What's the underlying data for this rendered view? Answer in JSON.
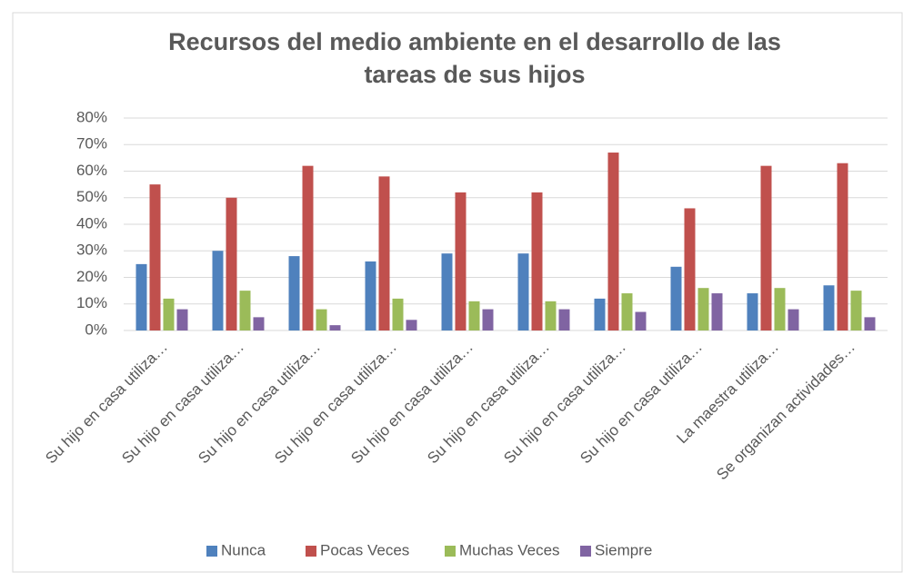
{
  "chart_data": {
    "type": "bar",
    "title": "Recursos del medio ambiente en el desarrollo de las tareas de sus hijos",
    "categories": [
      "Su hijo en casa utiliza…",
      "Su hijo en casa utiliza…",
      "Su hijo en casa utiliza…",
      "Su hijo en casa utiliza…",
      "Su hijo en casa utiliza…",
      "Su hijo en casa utiliza…",
      "Su hijo en casa utiliza…",
      "Su hijo en casa utiliza…",
      "La maestra utiliza…",
      "Se organizan actividades…"
    ],
    "series": [
      {
        "name": "Nunca",
        "color": "#4f81bd",
        "values": [
          25,
          30,
          28,
          26,
          29,
          29,
          12,
          24,
          14,
          17
        ]
      },
      {
        "name": "Pocas Veces",
        "color": "#c0504d",
        "values": [
          55,
          50,
          62,
          58,
          52,
          52,
          67,
          46,
          62,
          63
        ]
      },
      {
        "name": "Muchas Veces",
        "color": "#9bbb59",
        "values": [
          12,
          15,
          8,
          12,
          11,
          11,
          14,
          16,
          16,
          15
        ]
      },
      {
        "name": "Siempre",
        "color": "#8064a2",
        "values": [
          8,
          5,
          2,
          4,
          8,
          8,
          7,
          14,
          8,
          5
        ]
      }
    ],
    "ylim": [
      0,
      80
    ],
    "yticks": [
      {
        "value": 0,
        "label": "0%"
      },
      {
        "value": 10,
        "label": "10%"
      },
      {
        "value": 20,
        "label": "20%"
      },
      {
        "value": 30,
        "label": "30%"
      },
      {
        "value": 40,
        "label": "40%"
      },
      {
        "value": 50,
        "label": "50%"
      },
      {
        "value": 60,
        "label": "60%"
      },
      {
        "value": 70,
        "label": "70%"
      },
      {
        "value": 80,
        "label": "80%"
      }
    ],
    "grid": true,
    "legend": "bottom"
  }
}
